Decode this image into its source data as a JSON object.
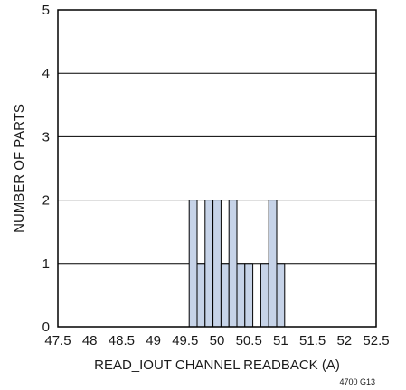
{
  "chart_data": {
    "type": "bar",
    "title": "",
    "xlabel": "READ_IOUT CHANNEL READBACK (A)",
    "ylabel": "NUMBER OF PARTS",
    "xlim": [
      47.5,
      52.5
    ],
    "ylim": [
      0,
      5
    ],
    "bin_width": 0.125,
    "x_ticks": [
      "47.5",
      "48",
      "48.5",
      "49",
      "49.5",
      "50",
      "50.5",
      "51",
      "51.5",
      "52",
      "52.5"
    ],
    "y_ticks": [
      "0",
      "1",
      "2",
      "3",
      "4",
      "5"
    ],
    "grid": "horizontal",
    "bar_color": "#c6d3e8",
    "bins": [
      {
        "x": 49.625,
        "value": 2
      },
      {
        "x": 49.75,
        "value": 1
      },
      {
        "x": 49.875,
        "value": 2
      },
      {
        "x": 50.0,
        "value": 2
      },
      {
        "x": 50.125,
        "value": 1
      },
      {
        "x": 50.25,
        "value": 2
      },
      {
        "x": 50.375,
        "value": 1
      },
      {
        "x": 50.5,
        "value": 1
      },
      {
        "x": 50.75,
        "value": 1
      },
      {
        "x": 50.875,
        "value": 2
      },
      {
        "x": 51.0,
        "value": 1
      }
    ]
  },
  "figure_code": "4700 G13"
}
